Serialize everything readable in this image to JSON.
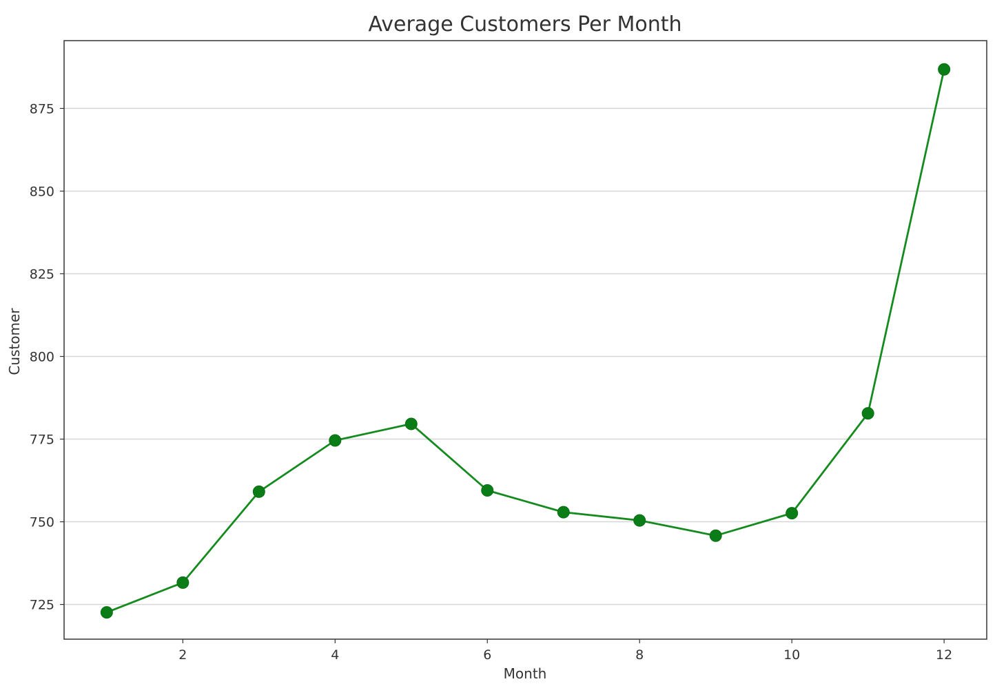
{
  "chart_data": {
    "type": "line",
    "title": "Average Customers Per Month",
    "xlabel": "Month",
    "ylabel": "Customer",
    "x": [
      1,
      2,
      3,
      4,
      5,
      6,
      7,
      8,
      9,
      10,
      11,
      12
    ],
    "series": [
      {
        "values": [
          722.6,
          731.6,
          759.1,
          774.6,
          779.6,
          759.5,
          752.9,
          750.4,
          745.8,
          752.6,
          782.8,
          886.8
        ],
        "color": "#158a1e",
        "marker": "circle"
      }
    ],
    "xticks": [
      2,
      4,
      6,
      8,
      10,
      12
    ],
    "yticks": [
      725,
      750,
      775,
      800,
      825,
      850,
      875
    ],
    "xlim": [
      0.44,
      12.56
    ],
    "ylim": [
      714.5,
      895.5
    ],
    "grid": "y",
    "legend": "none"
  }
}
